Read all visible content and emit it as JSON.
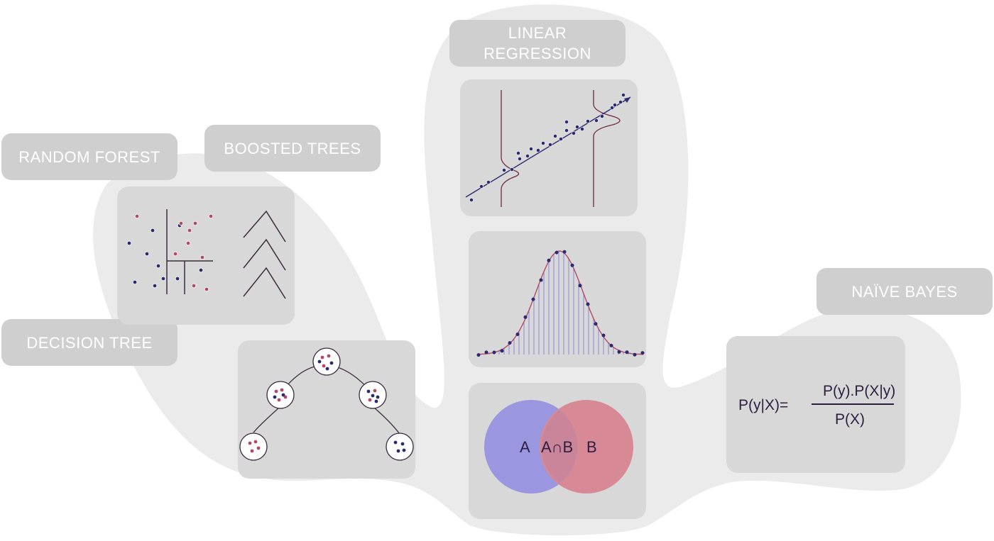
{
  "labels": {
    "random_forest": "RANDOM FOREST",
    "boosted_trees": "BOOSTED TREES",
    "decision_tree": "DECISION TREE",
    "linear_regression_line1": "LINEAR",
    "linear_regression_line2": "REGRESSION",
    "naive_bayes": "NAÏVE BAYES"
  },
  "venn": {
    "a": "A",
    "intersection": "A∩B",
    "b": "B"
  },
  "formula": {
    "lhs": "P(y|X)=",
    "numerator": "P(y).P(X|y)",
    "denominator": "P(X)"
  },
  "colors": {
    "blob": "#ebebeb",
    "label_bg": "#cfcfcf",
    "panel_bg": "#d8d8d8",
    "dot_dark": "#2c2a6e",
    "dot_pink": "#b24a66",
    "line": "#3a2a3a",
    "venn_a": "#9a96e0",
    "venn_b": "#d78a96"
  }
}
